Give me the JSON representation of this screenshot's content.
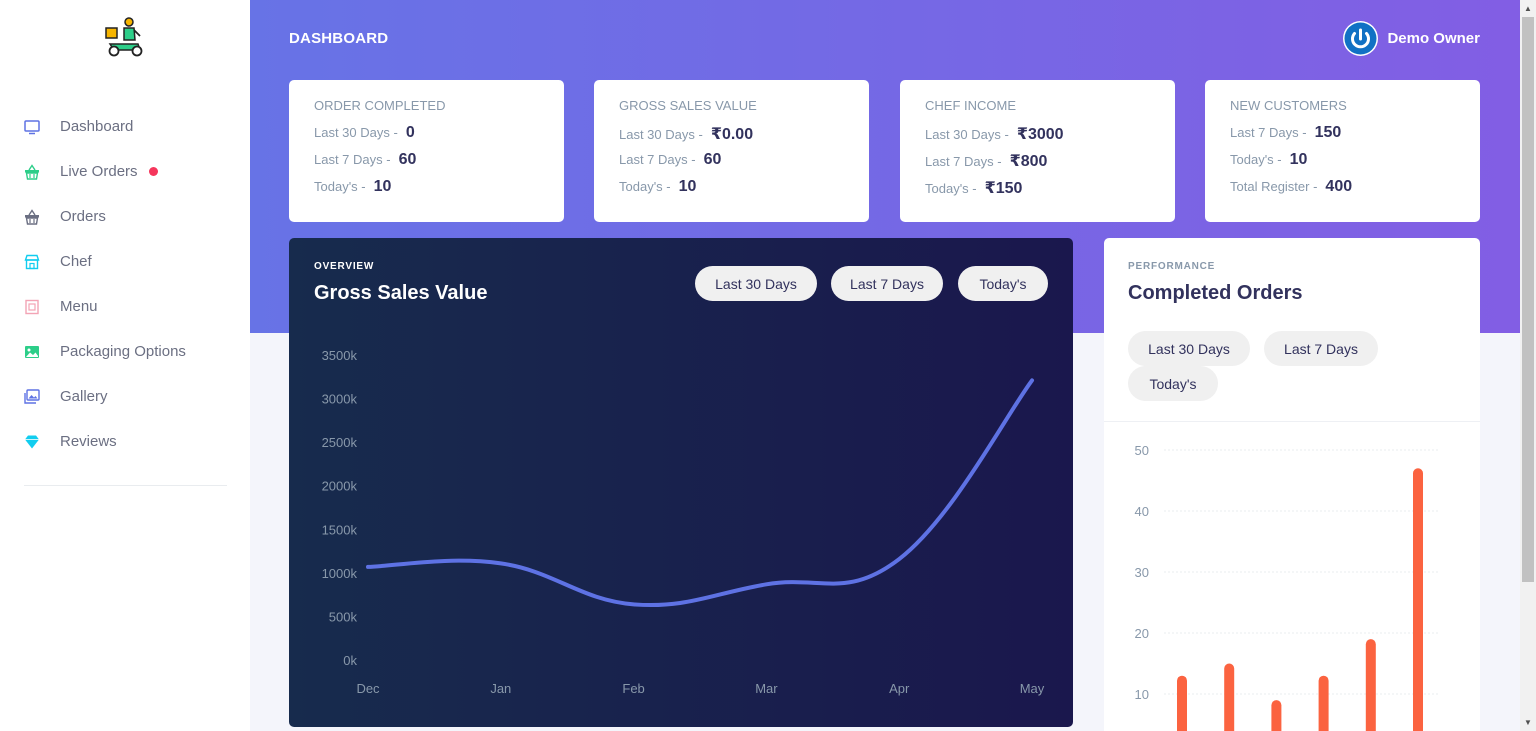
{
  "app": {
    "logo_icon": "delivery-scooter-logo"
  },
  "sidebar": {
    "items": [
      {
        "label": "Dashboard",
        "icon": "monitor-icon",
        "color": "#5e72e4"
      },
      {
        "label": "Live Orders",
        "icon": "basket-icon",
        "color": "#2dce89",
        "live": true
      },
      {
        "label": "Orders",
        "icon": "basket-icon",
        "color": "#6b6f82"
      },
      {
        "label": "Chef",
        "icon": "shop-icon",
        "color": "#11cdef"
      },
      {
        "label": "Menu",
        "icon": "menu-icon",
        "color": "#f3a4b5"
      },
      {
        "label": "Packaging Options",
        "icon": "image-icon",
        "color": "#2dce89"
      },
      {
        "label": "Gallery",
        "icon": "gallery-icon",
        "color": "#5e72e4"
      },
      {
        "label": "Reviews",
        "icon": "diamond-icon",
        "color": "#11cdef"
      }
    ]
  },
  "header": {
    "title": "DASHBOARD",
    "user_name": "Demo Owner"
  },
  "stats": [
    {
      "title": "ORDER COMPLETED",
      "rows": [
        {
          "label": "Last 30 Days -",
          "value": "0"
        },
        {
          "label": "Last 7 Days -",
          "value": "60"
        },
        {
          "label": "Today's -",
          "value": "10"
        }
      ]
    },
    {
      "title": "GROSS SALES VALUE",
      "rows": [
        {
          "label": "Last 30 Days -",
          "value": "₹0.00"
        },
        {
          "label": "Last 7 Days -",
          "value": "60"
        },
        {
          "label": "Today's -",
          "value": "10"
        }
      ]
    },
    {
      "title": "CHEF INCOME",
      "rows": [
        {
          "label": "Last 30 Days -",
          "value": "₹3000"
        },
        {
          "label": "Last 7 Days -",
          "value": "₹800"
        },
        {
          "label": "Today's -",
          "value": "₹150"
        }
      ]
    },
    {
      "title": "NEW CUSTOMERS",
      "rows": [
        {
          "label": "Last 7 Days -",
          "value": "150"
        },
        {
          "label": "Today's -",
          "value": "10"
        },
        {
          "label": "Total Register -",
          "value": "400"
        }
      ]
    }
  ],
  "sales_chart": {
    "eyebrow": "OVERVIEW",
    "title": "Gross Sales Value",
    "filters": [
      "Last 30 Days",
      "Last 7 Days",
      "Today's"
    ],
    "line_color": "#5e72e4"
  },
  "performance": {
    "eyebrow": "PERFORMANCE",
    "title": "Completed Orders",
    "filters": [
      "Last 30 Days",
      "Last 7 Days",
      "Today's"
    ],
    "bar_color": "#fb6340"
  },
  "chart_data": [
    {
      "type": "line",
      "categories": [
        "Dec",
        "Jan",
        "Feb",
        "Mar",
        "Apr",
        "May"
      ],
      "series": [
        {
          "values": [
            1080,
            1120,
            650,
            880,
            1170,
            3220
          ]
        }
      ],
      "y_ticks": [
        "0k",
        "500k",
        "1000k",
        "1500k",
        "2000k",
        "2500k",
        "3000k",
        "3500k"
      ],
      "ylim": [
        0,
        3500
      ],
      "grid": false
    },
    {
      "type": "bar",
      "values": [
        13,
        15,
        9,
        13,
        19,
        47
      ],
      "y_ticks": [
        "10",
        "20",
        "30",
        "40",
        "50"
      ],
      "ylim": [
        0,
        50
      ],
      "grid": true
    }
  ]
}
